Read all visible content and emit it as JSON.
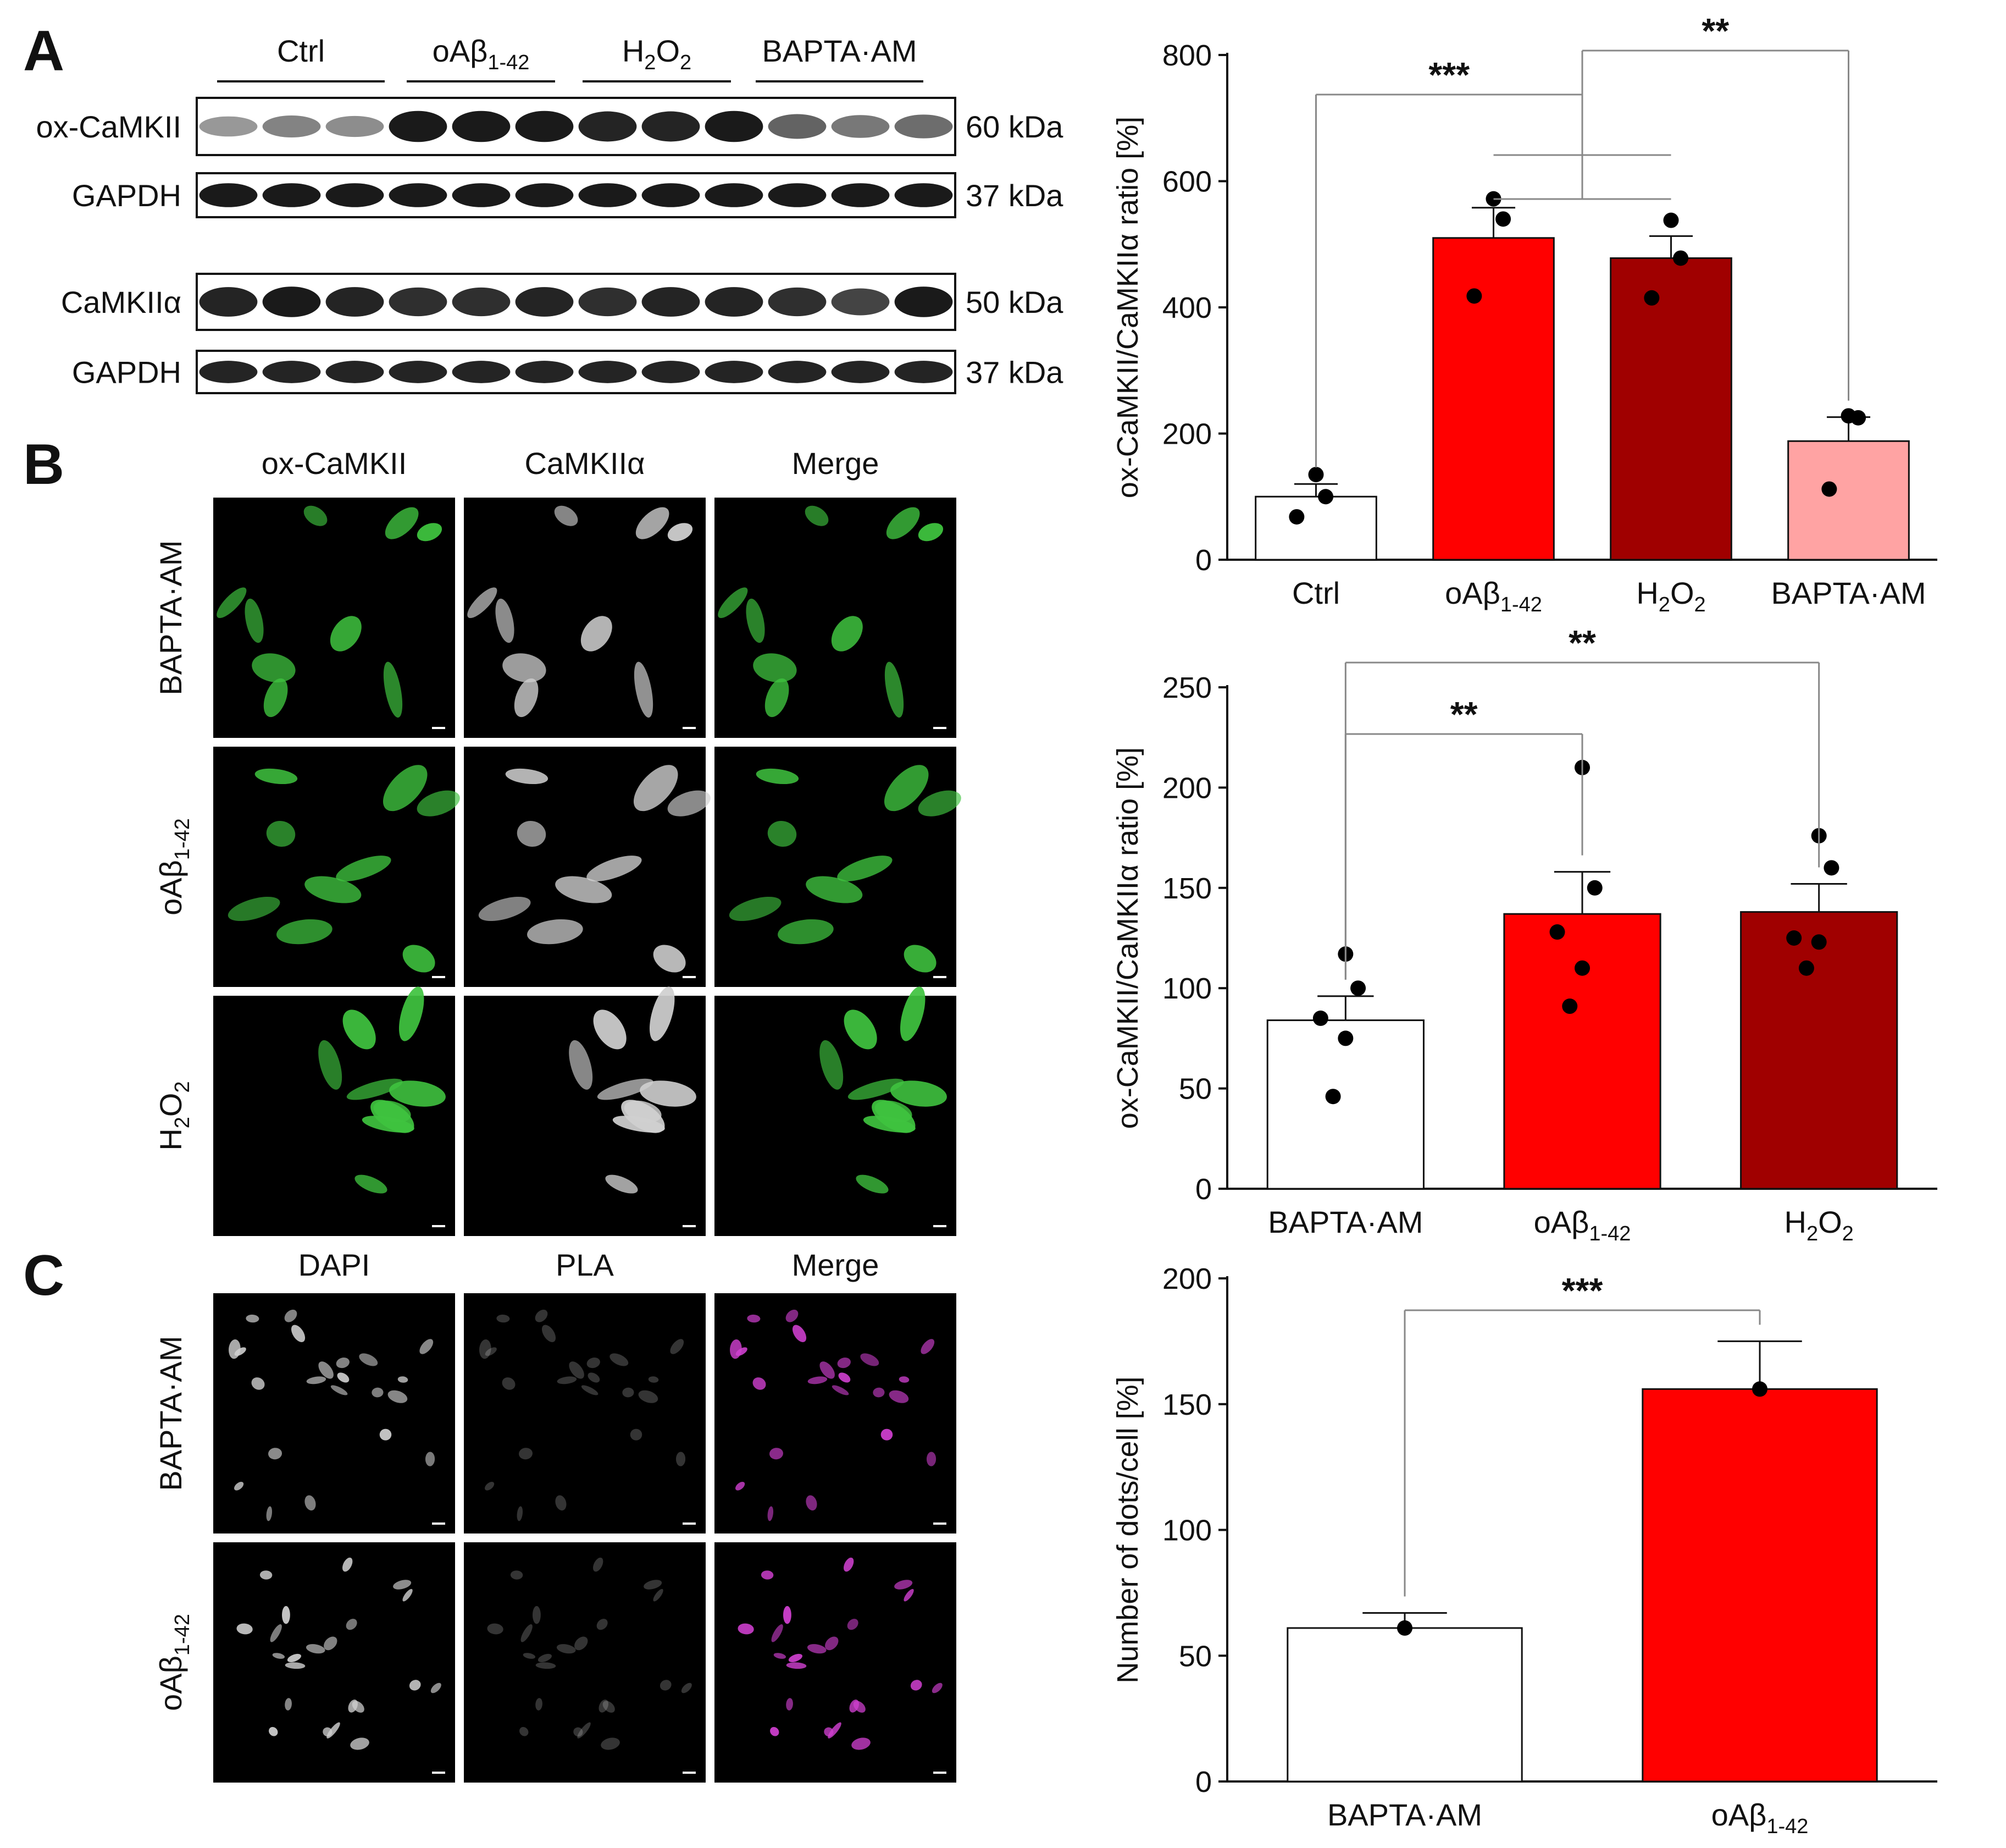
{
  "panels": {
    "a": "A",
    "b": "B",
    "c": "C"
  },
  "colors": {
    "ctrl": "#ffffff",
    "oab": "#ff0000",
    "h2o2": "#a00000",
    "bapta": "#ffa3a3",
    "cell_green": "#3fc33f",
    "cell_gray": "#d0d0d0",
    "cell_magenta": "#d040d0"
  },
  "blot": {
    "group_labels": [
      {
        "base": "Ctrl",
        "sub1": "",
        "mid": "",
        "sub2": ""
      },
      {
        "base": "oAβ",
        "sub1": "1-42",
        "mid": "",
        "sub2": ""
      },
      {
        "base": "H",
        "sub1": "2",
        "mid": "O",
        "sub2": "2"
      },
      {
        "base": "BAPTA·AM",
        "sub1": "",
        "mid": "",
        "sub2": ""
      }
    ],
    "rows": [
      {
        "label": "ox-CaMKII",
        "kda": "60 kDa",
        "intensity": [
          0.35,
          0.45,
          0.4,
          0.95,
          0.95,
          0.95,
          0.9,
          0.9,
          0.95,
          0.6,
          0.5,
          0.55
        ]
      },
      {
        "label": "GAPDH",
        "kda": "37 kDa",
        "intensity": [
          0.95,
          0.95,
          0.95,
          0.95,
          0.95,
          0.95,
          0.95,
          0.95,
          0.95,
          0.95,
          0.95,
          0.95
        ]
      },
      {
        "label": "CaMKIIα",
        "kda": "50 kDa",
        "intensity": [
          0.9,
          0.95,
          0.9,
          0.85,
          0.85,
          0.9,
          0.85,
          0.9,
          0.9,
          0.85,
          0.75,
          0.95
        ]
      },
      {
        "label": "GAPDH",
        "kda": "37 kDa",
        "intensity": [
          0.9,
          0.9,
          0.9,
          0.9,
          0.9,
          0.9,
          0.9,
          0.9,
          0.9,
          0.9,
          0.9,
          0.9
        ]
      }
    ]
  },
  "panel_b": {
    "col_labels": [
      "ox-CaMKII",
      "CaMKIIα",
      "Merge"
    ],
    "row_labels": [
      {
        "base": "BAPTA·AM",
        "sub1": "",
        "mid": "",
        "sub2": ""
      },
      {
        "base": "oAβ",
        "sub1": "1-42",
        "mid": "",
        "sub2": ""
      },
      {
        "base": "H",
        "sub1": "2",
        "mid": "O",
        "sub2": "2"
      }
    ]
  },
  "panel_c": {
    "col_labels": [
      "DAPI",
      "PLA",
      "Merge"
    ],
    "row_labels": [
      {
        "base": "BAPTA·AM",
        "sub1": "",
        "mid": "",
        "sub2": ""
      },
      {
        "base": "oAβ",
        "sub1": "1-42",
        "mid": "",
        "sub2": ""
      }
    ]
  },
  "chart_data": [
    {
      "type": "bar",
      "panel": "A",
      "ylabel": "ox-CaMKII/CaMKIIα ratio [%]",
      "ylim": [
        0,
        800
      ],
      "yticks": [
        0,
        200,
        400,
        600,
        800
      ],
      "categories": [
        {
          "base": "Ctrl",
          "sub1": "",
          "mid": "",
          "sub2": ""
        },
        {
          "base": "oAβ",
          "sub1": "1-42",
          "mid": "",
          "sub2": ""
        },
        {
          "base": "H",
          "sub1": "2",
          "mid": "O",
          "sub2": "2"
        },
        {
          "base": "BAPTA·AM",
          "sub1": "",
          "mid": "",
          "sub2": ""
        }
      ],
      "values": [
        100,
        510,
        478,
        188
      ],
      "errors": [
        20,
        48,
        35,
        38
      ],
      "points": [
        [
          135,
          100,
          68
        ],
        [
          572,
          540,
          418
        ],
        [
          538,
          478,
          415
        ],
        [
          228,
          225,
          112
        ]
      ],
      "color_keys": [
        "ctrl",
        "oab",
        "h2o2",
        "bapta"
      ],
      "significance": [
        {
          "from": 0,
          "to": [
            1,
            2
          ],
          "label": "***"
        },
        {
          "from": 3,
          "to": [
            1,
            2
          ],
          "label": "**"
        }
      ]
    },
    {
      "type": "bar",
      "panel": "B",
      "ylabel": "ox-CaMKII/CaMKIIα ratio [%]",
      "ylim": [
        0,
        250
      ],
      "yticks": [
        0,
        50,
        100,
        150,
        200,
        250
      ],
      "categories": [
        {
          "base": "BAPTA·AM",
          "sub1": "",
          "mid": "",
          "sub2": ""
        },
        {
          "base": "oAβ",
          "sub1": "1-42",
          "mid": "",
          "sub2": ""
        },
        {
          "base": "H",
          "sub1": "2",
          "mid": "O",
          "sub2": "2"
        }
      ],
      "values": [
        84,
        137,
        138
      ],
      "errors": [
        12,
        21,
        14
      ],
      "points": [
        [
          117,
          100,
          85,
          75,
          46
        ],
        [
          210,
          150,
          128,
          110,
          91
        ],
        [
          176,
          160,
          125,
          123,
          110
        ]
      ],
      "color_keys": [
        "ctrl",
        "oab",
        "h2o2"
      ],
      "significance": [
        {
          "from": 0,
          "to": [
            1
          ],
          "label": "**"
        },
        {
          "from": 0,
          "to": [
            2
          ],
          "label": "**"
        }
      ]
    },
    {
      "type": "bar",
      "panel": "C",
      "ylabel": "Number of dots/cell [%]",
      "ylim": [
        0,
        200
      ],
      "yticks": [
        0,
        50,
        100,
        150,
        200
      ],
      "categories": [
        {
          "base": "BAPTA·AM",
          "sub1": "",
          "mid": "",
          "sub2": ""
        },
        {
          "base": "oAβ",
          "sub1": "1-42",
          "mid": "",
          "sub2": ""
        }
      ],
      "values": [
        61,
        156
      ],
      "errors": [
        6,
        19
      ],
      "points": [
        [
          61
        ],
        [
          156
        ]
      ],
      "color_keys": [
        "ctrl",
        "oab"
      ],
      "significance": [
        {
          "from": 0,
          "to": [
            1
          ],
          "label": "***"
        }
      ]
    }
  ]
}
